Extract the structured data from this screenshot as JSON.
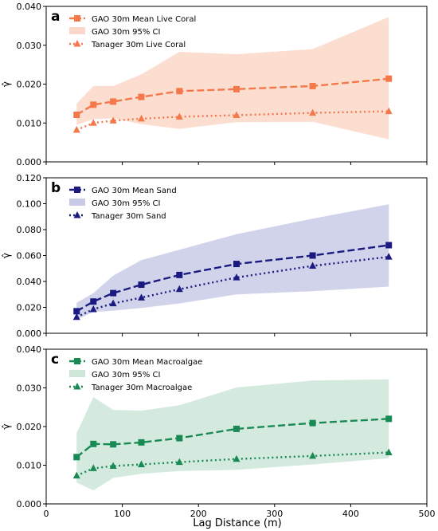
{
  "figure": {
    "xlabel": "Lag Distance (m)",
    "ylabel": "γ̂",
    "xticks": [
      0,
      100,
      200,
      300,
      400,
      500
    ],
    "xlim": [
      0,
      500
    ]
  },
  "chart_data": [
    {
      "type": "line",
      "panel_label": "a",
      "x": [
        40,
        62,
        88,
        125,
        175,
        250,
        350,
        450
      ],
      "ylim": [
        0,
        0.04
      ],
      "yticks": [
        "0.000",
        "0.010",
        "0.020",
        "0.030",
        "0.040"
      ],
      "ylabel": "γ̂",
      "legend_position": "top-left",
      "colors": {
        "main": "#f4784a",
        "band": "#fbd8c9"
      },
      "series": [
        {
          "name": "GAO 30m Mean Live Coral",
          "style": "dashed-square",
          "values": [
            0.0121,
            0.0147,
            0.0155,
            0.0167,
            0.0182,
            0.0187,
            0.0195,
            0.0214
          ]
        },
        {
          "name": "GAO 30m 95% CI",
          "style": "band",
          "lower": [
            0.0095,
            0.011,
            0.0112,
            0.0097,
            0.0085,
            0.0102,
            0.0103,
            0.0058
          ],
          "upper": [
            0.015,
            0.0195,
            0.0195,
            0.0225,
            0.0283,
            0.0277,
            0.029,
            0.0373
          ]
        },
        {
          "name": "Tanager 30m Live Coral",
          "style": "dotted-triangle",
          "values": [
            0.0082,
            0.01,
            0.0106,
            0.0111,
            0.0116,
            0.012,
            0.0126,
            0.013
          ]
        }
      ]
    },
    {
      "type": "line",
      "panel_label": "b",
      "x": [
        40,
        62,
        88,
        125,
        175,
        250,
        350,
        450
      ],
      "ylim": [
        0,
        0.12
      ],
      "yticks": [
        "0.000",
        "0.020",
        "0.040",
        "0.060",
        "0.080",
        "0.100",
        "0.120"
      ],
      "ylabel": "γ̂",
      "legend_position": "top-left",
      "colors": {
        "main": "#1a1a80",
        "band": "#c9cbe6"
      },
      "series": [
        {
          "name": "GAO 30m Mean Sand",
          "style": "dashed-square",
          "values": [
            0.017,
            0.0245,
            0.031,
            0.0375,
            0.045,
            0.0535,
            0.06,
            0.068
          ]
        },
        {
          "name": "GAO 30m 95% CI",
          "style": "band",
          "lower": [
            0.0105,
            0.0165,
            0.0175,
            0.0195,
            0.023,
            0.03,
            0.0325,
            0.036
          ]
        },
        {
          "name": "Tanager 30m Sand",
          "style": "dotted-triangle",
          "values": [
            0.0125,
            0.0185,
            0.023,
            0.0275,
            0.034,
            0.043,
            0.052,
            0.059
          ]
        }
      ]
    },
    {
      "type": "line",
      "panel_label": "c",
      "x": [
        40,
        62,
        88,
        125,
        175,
        250,
        350,
        450
      ],
      "ylim": [
        0,
        0.04
      ],
      "yticks": [
        "0.000",
        "0.010",
        "0.020",
        "0.030",
        "0.040"
      ],
      "ylabel": "γ̂",
      "legend_position": "top-left",
      "colors": {
        "main": "#1a8a55",
        "band": "#cde6d8"
      },
      "series": [
        {
          "name": "GAO 30m Mean Macroalgae",
          "style": "dashed-square",
          "values": [
            0.0121,
            0.0155,
            0.0154,
            0.0159,
            0.017,
            0.0194,
            0.0209,
            0.022
          ]
        },
        {
          "name": "GAO 30m 95% CI",
          "style": "band",
          "lower": [
            0.0055,
            0.0035,
            0.0067,
            0.0078,
            0.0085,
            0.0088,
            0.0102,
            0.0118
          ],
          "upper": [
            0.0183,
            0.0276,
            0.0243,
            0.0241,
            0.0255,
            0.0301,
            0.0319,
            0.0322
          ]
        },
        {
          "name": "Tanager 30m Macroalgae",
          "style": "dotted-triangle",
          "values": [
            0.0073,
            0.0092,
            0.0098,
            0.0102,
            0.0108,
            0.0116,
            0.0124,
            0.0133
          ]
        }
      ]
    }
  ]
}
